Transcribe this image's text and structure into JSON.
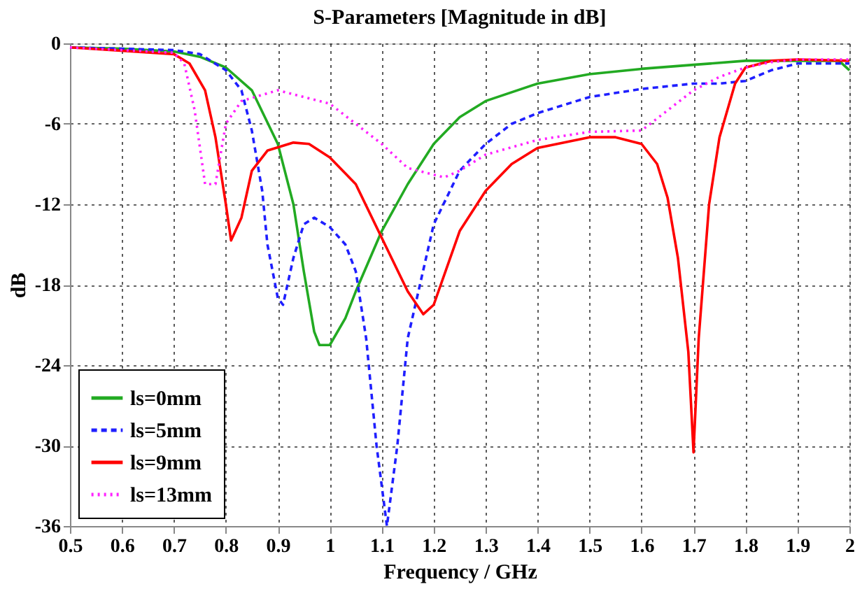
{
  "chart_data": {
    "type": "line",
    "title": "S-Parameters [Magnitude in dB]",
    "xlabel": "Frequency / GHz",
    "ylabel": "dB",
    "xlim": [
      0.5,
      2
    ],
    "xticks": [
      0.5,
      0.6,
      0.7,
      0.8,
      0.9,
      1,
      1.1,
      1.2,
      1.3,
      1.4,
      1.5,
      1.6,
      1.7,
      1.8,
      1.9,
      2
    ],
    "ylim": [
      -36,
      0
    ],
    "yticks": [
      0,
      -6,
      -12,
      -18,
      -24,
      -30,
      -36
    ],
    "grid": true,
    "legend": "bottom left",
    "series": [
      {
        "name": "ls=0mm",
        "color": "#22aa22",
        "line_style": "solid",
        "x": [
          0.5,
          0.6,
          0.7,
          0.75,
          0.8,
          0.85,
          0.9,
          0.93,
          0.95,
          0.97,
          0.98,
          1.0,
          1.03,
          1.05,
          1.1,
          1.15,
          1.2,
          1.25,
          1.3,
          1.4,
          1.5,
          1.6,
          1.7,
          1.8,
          1.9,
          1.98,
          2.0
        ],
        "values": [
          -0.3,
          -0.4,
          -0.6,
          -1.0,
          -1.8,
          -3.5,
          -7.5,
          -12,
          -17,
          -21.5,
          -22.5,
          -22.5,
          -20.5,
          -18.5,
          -14,
          -10.5,
          -7.5,
          -5.5,
          -4.3,
          -3,
          -2.3,
          -1.9,
          -1.6,
          -1.3,
          -1.3,
          -1.3,
          -2.0
        ]
      },
      {
        "name": "ls=5mm",
        "color": "#1f1fff",
        "line_style": "dashed",
        "x": [
          0.5,
          0.7,
          0.75,
          0.8,
          0.83,
          0.85,
          0.87,
          0.88,
          0.9,
          0.91,
          0.93,
          0.95,
          0.97,
          1.0,
          1.03,
          1.05,
          1.07,
          1.09,
          1.11,
          1.13,
          1.15,
          1.2,
          1.25,
          1.3,
          1.35,
          1.4,
          1.5,
          1.6,
          1.7,
          1.75,
          1.8,
          1.85,
          1.9,
          2.0
        ],
        "values": [
          -0.3,
          -0.5,
          -0.8,
          -2,
          -3.5,
          -6.5,
          -11,
          -15,
          -19,
          -19.5,
          -16,
          -13.5,
          -13,
          -13.7,
          -15,
          -17,
          -22,
          -30,
          -36,
          -30,
          -22,
          -13.5,
          -9.5,
          -7.5,
          -6,
          -5.2,
          -4,
          -3.4,
          -3,
          -3,
          -2.8,
          -2,
          -1.5,
          -1.5
        ]
      },
      {
        "name": "ls=9mm",
        "color": "#ff0000",
        "line_style": "solid",
        "x": [
          0.5,
          0.7,
          0.73,
          0.76,
          0.78,
          0.8,
          0.81,
          0.83,
          0.85,
          0.88,
          0.93,
          0.96,
          1.0,
          1.05,
          1.1,
          1.15,
          1.18,
          1.2,
          1.25,
          1.3,
          1.35,
          1.4,
          1.5,
          1.55,
          1.6,
          1.63,
          1.65,
          1.67,
          1.69,
          1.7,
          1.71,
          1.73,
          1.75,
          1.78,
          1.8,
          1.85,
          1.9,
          2.0
        ],
        "values": [
          -0.3,
          -0.8,
          -1.5,
          -3.5,
          -7,
          -12,
          -14.7,
          -13,
          -9.5,
          -8,
          -7.4,
          -7.5,
          -8.5,
          -10.5,
          -14.5,
          -18.5,
          -20.2,
          -19.5,
          -14,
          -11,
          -9,
          -7.8,
          -7.0,
          -7.0,
          -7.5,
          -9,
          -11.5,
          -16,
          -23,
          -30.5,
          -22,
          -12,
          -7,
          -3,
          -1.8,
          -1.3,
          -1.2,
          -1.3
        ]
      },
      {
        "name": "ls=13mm",
        "color": "#ff22ff",
        "line_style": "dotted",
        "x": [
          0.5,
          0.7,
          0.72,
          0.74,
          0.76,
          0.78,
          0.8,
          0.83,
          0.9,
          1.0,
          1.05,
          1.1,
          1.15,
          1.2,
          1.22,
          1.25,
          1.3,
          1.4,
          1.5,
          1.6,
          1.65,
          1.7,
          1.75,
          1.8,
          1.85,
          1.9,
          2.0
        ],
        "values": [
          -0.3,
          -0.7,
          -1.5,
          -5,
          -10.5,
          -10.5,
          -6,
          -4.3,
          -3.5,
          -4.5,
          -6,
          -7.5,
          -9.3,
          -9.8,
          -10,
          -9.5,
          -8.3,
          -7.2,
          -6.6,
          -6.5,
          -5,
          -3.5,
          -2.5,
          -1.8,
          -1.4,
          -1.2,
          -1.2
        ]
      }
    ]
  }
}
